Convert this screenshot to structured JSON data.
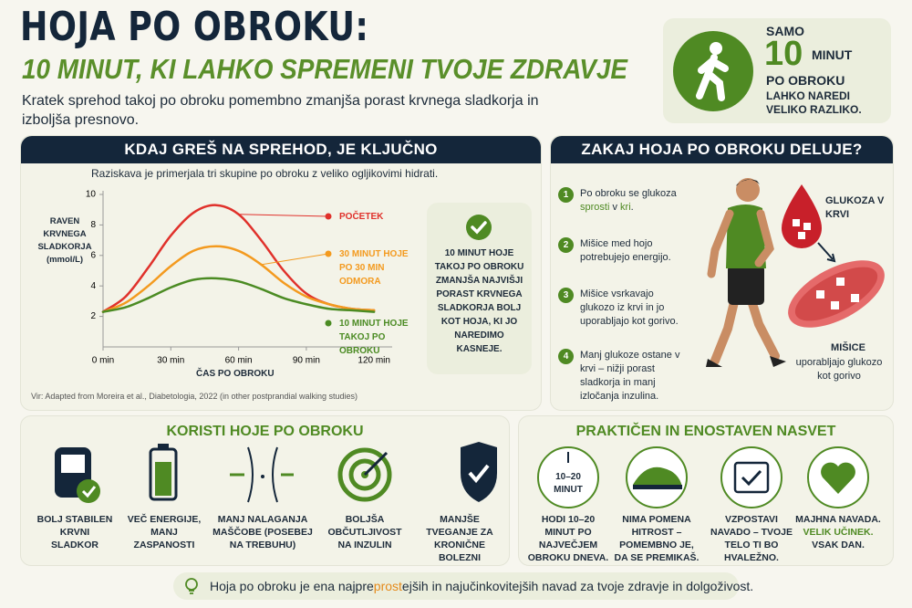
{
  "header": {
    "title": "HOJA PO OBROKU:",
    "subtitle": "10 MINUT, KI LAHKO SPREMENI TVOJE ZDRAVJE",
    "intro": "Kratek sprehod takoj po obroku pomembno zmanjša porast krvnega sladkorja in izboljša presnovo."
  },
  "highlight": {
    "prefix": "SAMO",
    "number": "10",
    "unit": "MINUT",
    "line": "PO OBROKU",
    "text": "LAHKO NAREDI VELIKO RAZLIKO."
  },
  "chart_data": {
    "type": "line",
    "title": "KDAJ GREŠ NA SPREHOD, JE KLJUČNO",
    "subtitle": "Raziskava je primerjala tri skupine po obroku z veliko ogljikovimi hidrati.",
    "y_label": "RAVEN KRVNEGA SLADKORJA (mmol/L)",
    "x_label": "ČAS PO OBROKU",
    "x": [
      0,
      10,
      20,
      30,
      40,
      50,
      60,
      70,
      80,
      90,
      100,
      110,
      120
    ],
    "series": [
      {
        "name": "POČETEK",
        "color": "#e0312b",
        "values": [
          2.3,
          3.3,
          5.2,
          7.3,
          8.8,
          9.3,
          8.7,
          7.0,
          5.0,
          3.5,
          2.8,
          2.5,
          2.4
        ]
      },
      {
        "name": "30 MINUT HOJE PO 30 MIN ODMORA",
        "color": "#f39a1f",
        "values": [
          2.3,
          2.9,
          4.0,
          5.3,
          6.3,
          6.6,
          6.3,
          5.4,
          4.2,
          3.3,
          2.8,
          2.5,
          2.4
        ]
      },
      {
        "name": "10 MINUT HOJE TAKOJ PO OBROKU",
        "color": "#4b8b23",
        "values": [
          2.3,
          2.6,
          3.2,
          3.9,
          4.4,
          4.5,
          4.3,
          3.8,
          3.2,
          2.8,
          2.5,
          2.4,
          2.3
        ]
      }
    ],
    "xlim": [
      0,
      128
    ],
    "ylim": [
      0,
      10
    ],
    "xticks": [
      {
        "value": 0,
        "label": "0 min"
      },
      {
        "value": 30,
        "label": "30 min"
      },
      {
        "value": 60,
        "label": "60 min"
      },
      {
        "value": 90,
        "label": "90 min"
      },
      {
        "value": 120,
        "label": "120 min"
      }
    ],
    "yticks": [
      2,
      4,
      6,
      8,
      10
    ],
    "callout": "10 MINUT HOJE TAKOJ PO OBROKU ZMANJŠA NAJVIŠJI PORAST KRVNEGA SLADKORJA BOLJ KOT HOJA, KI JO NAREDIMO KASNEJE.",
    "source": "Vir: Adapted from Moreira et al., Diabetologia, 2022 (in other postprandial walking studies)"
  },
  "mechanism": {
    "title": "ZAKAJ HOJA PO OBROKU DELUJE?",
    "steps": [
      {
        "number": 1,
        "parts": [
          "Po obroku se glukoza ",
          "sprosti",
          " v ",
          "kri",
          "."
        ]
      },
      {
        "number": 2,
        "parts": [
          "Mišice med hojo potrebujejo energijo."
        ]
      },
      {
        "number": 3,
        "parts": [
          "Mišice vsrkavajo glukozo iz krvi in jo uporabljajo kot gorivo."
        ]
      },
      {
        "number": 4,
        "parts": [
          "Manj glukoze ostane v krvi – nižji porast sladkorja in manj izločanja inzulina."
        ]
      }
    ],
    "glucose_label": "GLUKOZA V KRVI",
    "muscle_label": "MIŠICE",
    "muscle_text": "uporabljajo glukozo kot gorivo"
  },
  "benefits": {
    "title": "KORISTI HOJE PO OBROKU",
    "items": [
      "BOLJ STABILEN KRVNI SLADKOR",
      "VEČ ENERGIJE, MANJ ZASPANOSTI",
      "MANJ NALAGANJA MAŠČOBE (POSEBEJ NA TREBUHU)",
      "BOLJŠA OBČUTLJIVOST NA INZULIN",
      "MANJŠE TVEGANJE ZA KRONIČNE BOLEZNI"
    ]
  },
  "tips": {
    "title": "PRAKTIČEN IN ENOSTAVEN NASVET",
    "badge": "10–20 MINUT",
    "items": [
      {
        "parts": [
          "HODI 10–20 MINUT PO NAJVEČJEM OBROKU DNEVA."
        ]
      },
      {
        "parts": [
          "NIMA POMENA HITROST – POMEMBNO JE, DA SE PREMIKAŠ."
        ]
      },
      {
        "parts": [
          "VZPOSTAVI NAVADO – TVOJE TELO TI BO HVALEŽNO."
        ]
      },
      {
        "parts": [
          "MAJHNA NAVADA. ",
          "VELIK UČINEK.",
          " VSAK DAN."
        ]
      }
    ]
  },
  "footer": {
    "parts": [
      "Hoja po obroku je ena najpre",
      "prost",
      "ejših in najučinkovitejših navad za tvoje zdravje in dolgoživost."
    ]
  }
}
